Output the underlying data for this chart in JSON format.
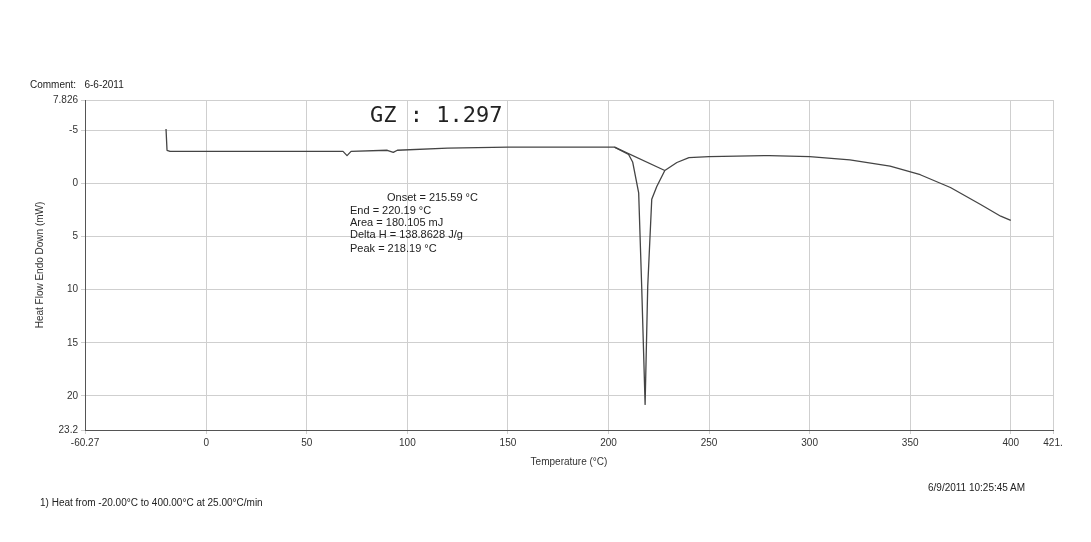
{
  "chart_data": {
    "type": "line",
    "xlabel": "Temperature (°C)",
    "ylabel": "Heat Flow Endo Down (mW)",
    "xlim": [
      -60.27,
      421
    ],
    "xticks": [
      {
        "value": -60.27,
        "label": "-60.27"
      },
      0,
      50,
      100,
      150,
      200,
      250,
      300,
      350,
      400,
      {
        "value": 421,
        "label": "421."
      }
    ],
    "ylim": [
      23.2,
      -7.826
    ],
    "yticks": [
      {
        "value": -7.826,
        "label": "7.826"
      },
      -5,
      0,
      5,
      10,
      15,
      20,
      23.2
    ],
    "grid": true,
    "legend": false,
    "marker": "none",
    "line_style": "solid",
    "series": [
      {
        "color": "#444444",
        "x": [
          -20,
          -19.5,
          -18,
          0,
          30,
          68,
          70,
          72,
          90,
          93,
          95,
          120,
          150,
          181,
          203,
          210,
          212,
          215,
          216.5,
          218.2,
          219.5,
          221.5,
          224,
          228,
          234,
          240,
          250,
          280,
          300,
          320,
          340,
          355,
          370,
          385,
          395,
          400
        ],
        "values": [
          -5.1,
          -3.1,
          -3.0,
          -3.0,
          -3.0,
          -3.0,
          -2.6,
          -3.0,
          -3.1,
          -2.9,
          -3.1,
          -3.3,
          -3.4,
          -3.4,
          -3.4,
          -2.7,
          -2.0,
          0.9,
          9.7,
          20.8,
          9.7,
          1.5,
          0.3,
          -1.2,
          -1.95,
          -2.4,
          -2.5,
          -2.6,
          -2.5,
          -2.2,
          -1.6,
          -0.8,
          0.4,
          2.0,
          3.1,
          3.5
        ]
      },
      {
        "color": "#444444",
        "x": [
          203,
          228
        ],
        "values": [
          -3.4,
          -1.2
        ]
      }
    ],
    "annotations": [
      "Comment:   6-6-2011",
      "GZ : 1.297",
      "Onset = 215.59 °C",
      "End = 220.19 °C",
      "Area = 180.105 mJ",
      "Delta H = 138.8628 J/g",
      "Peak = 218.19 °C",
      "6/9/2011 10:25:45 AM",
      "1) Heat from -20.00°C to 400.00°C at 25.00°C/min"
    ]
  }
}
